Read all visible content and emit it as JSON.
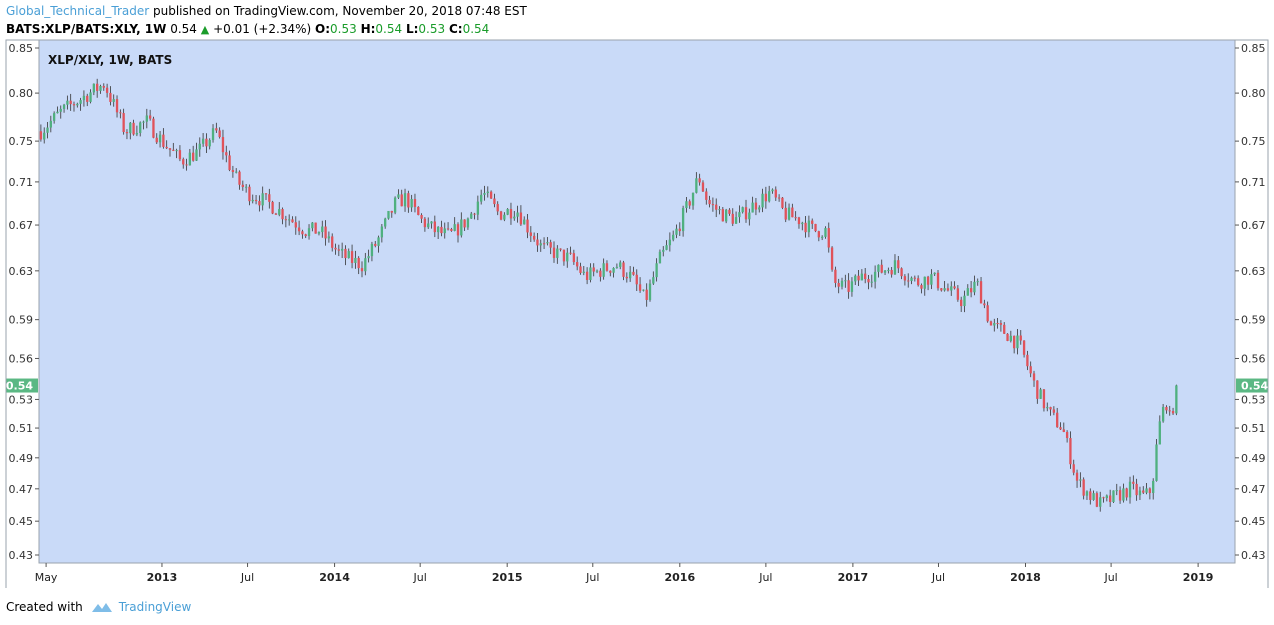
{
  "header": {
    "author": "Global_Technical_Trader",
    "published": " published on TradingView.com, November 20, 2018 07:48 EST"
  },
  "quote": {
    "symbol": "BATS:XLP/BATS:XLY, 1W",
    "last": "0.54",
    "change": "+0.01 (+2.34%)",
    "o_label": "O:",
    "o": "0.53",
    "h_label": "H:",
    "h": "0.54",
    "l_label": "L:",
    "l": "0.53",
    "c_label": "C:",
    "c": "0.54"
  },
  "footer": {
    "created_with": "Created with",
    "brand": "TradingView",
    "icon": "tradingview-logo-icon"
  },
  "colors": {
    "background": "#c9daf8",
    "up": "#4fb07f",
    "down": "#e0525a",
    "wick": "#333333",
    "price_tag": "#5bb884"
  },
  "chart_data": {
    "type": "candlestick",
    "title": "XLP/XLY, 1W, BATS",
    "y_ticks": [
      "0.85",
      "0.80",
      "0.75",
      "0.71",
      "0.67",
      "0.63",
      "0.59",
      "0.56",
      "0.53",
      "0.51",
      "0.49",
      "0.47",
      "0.45",
      "0.43"
    ],
    "y_scale": "log",
    "ylim": [
      0.43,
      0.85
    ],
    "x_ticks": [
      "May",
      "2013",
      "Jul",
      "2014",
      "Jul",
      "2015",
      "Jul",
      "2016",
      "Jul",
      "2017",
      "Jul",
      "2018",
      "Jul",
      "2019"
    ],
    "x_tick_dates": [
      "2012-05-01",
      "2013-01-01",
      "2013-07-01",
      "2014-01-01",
      "2014-07-01",
      "2015-01-01",
      "2015-07-01",
      "2016-01-01",
      "2016-07-01",
      "2017-01-01",
      "2017-07-01",
      "2018-01-01",
      "2018-07-01",
      "2019-01-01"
    ],
    "xlim": [
      "2012-04-16",
      "2019-03-20"
    ],
    "interval": "1W",
    "current_value": "0.54",
    "series": [
      {
        "close_path": [
          [
            "2012-04-20",
            0.76
          ],
          [
            "2012-06-01",
            0.78
          ],
          [
            "2012-08-01",
            0.8
          ],
          [
            "2012-09-01",
            0.81
          ],
          [
            "2012-10-15",
            0.76
          ],
          [
            "2012-12-01",
            0.77
          ],
          [
            "2013-01-01",
            0.75
          ],
          [
            "2013-02-10",
            0.73
          ],
          [
            "2013-03-20",
            0.74
          ],
          [
            "2013-04-25",
            0.76
          ],
          [
            "2013-05-20",
            0.73
          ],
          [
            "2013-06-10",
            0.71
          ],
          [
            "2013-07-01",
            0.7
          ],
          [
            "2013-08-15",
            0.69
          ],
          [
            "2013-10-01",
            0.675
          ],
          [
            "2013-11-01",
            0.665
          ],
          [
            "2013-12-01",
            0.665
          ],
          [
            "2014-01-10",
            0.645
          ],
          [
            "2014-02-01",
            0.64
          ],
          [
            "2014-03-01",
            0.635
          ],
          [
            "2014-04-01",
            0.655
          ],
          [
            "2014-05-10",
            0.69
          ],
          [
            "2014-06-01",
            0.695
          ],
          [
            "2014-07-01",
            0.675
          ],
          [
            "2014-08-01",
            0.665
          ],
          [
            "2014-09-01",
            0.66
          ],
          [
            "2014-10-10",
            0.675
          ],
          [
            "2014-11-10",
            0.7
          ],
          [
            "2014-12-15",
            0.68
          ],
          [
            "2015-01-20",
            0.685
          ],
          [
            "2015-02-10",
            0.67
          ],
          [
            "2015-03-15",
            0.65
          ],
          [
            "2015-04-15",
            0.645
          ],
          [
            "2015-05-15",
            0.64
          ],
          [
            "2015-06-15",
            0.625
          ],
          [
            "2015-07-15",
            0.63
          ],
          [
            "2015-08-20",
            0.635
          ],
          [
            "2015-09-20",
            0.625
          ],
          [
            "2015-10-20",
            0.605
          ],
          [
            "2015-11-20",
            0.64
          ],
          [
            "2015-12-20",
            0.66
          ],
          [
            "2016-01-20",
            0.69
          ],
          [
            "2016-02-10",
            0.715
          ],
          [
            "2016-03-01",
            0.69
          ],
          [
            "2016-04-01",
            0.68
          ],
          [
            "2016-05-01",
            0.675
          ],
          [
            "2016-06-10",
            0.69
          ],
          [
            "2016-07-10",
            0.7
          ],
          [
            "2016-08-10",
            0.68
          ],
          [
            "2016-09-10",
            0.675
          ],
          [
            "2016-10-10",
            0.665
          ],
          [
            "2016-11-05",
            0.665
          ],
          [
            "2016-11-20",
            0.62
          ],
          [
            "2016-12-20",
            0.615
          ],
          [
            "2017-01-20",
            0.625
          ],
          [
            "2017-03-01",
            0.63
          ],
          [
            "2017-04-01",
            0.635
          ],
          [
            "2017-05-15",
            0.62
          ],
          [
            "2017-06-15",
            0.625
          ],
          [
            "2017-07-15",
            0.615
          ],
          [
            "2017-08-20",
            0.605
          ],
          [
            "2017-09-20",
            0.62
          ],
          [
            "2017-10-20",
            0.585
          ],
          [
            "2017-11-20",
            0.58
          ],
          [
            "2017-12-20",
            0.57
          ],
          [
            "2018-01-20",
            0.54
          ],
          [
            "2018-02-20",
            0.52
          ],
          [
            "2018-03-20",
            0.51
          ],
          [
            "2018-04-20",
            0.475
          ],
          [
            "2018-05-20",
            0.465
          ],
          [
            "2018-06-10",
            0.46
          ],
          [
            "2018-07-10",
            0.465
          ],
          [
            "2018-08-10",
            0.47
          ],
          [
            "2018-09-10",
            0.465
          ],
          [
            "2018-09-25",
            0.47
          ],
          [
            "2018-10-10",
            0.51
          ],
          [
            "2018-10-25",
            0.53
          ],
          [
            "2018-11-01",
            0.515
          ],
          [
            "2018-11-20",
            0.54
          ]
        ]
      }
    ]
  }
}
